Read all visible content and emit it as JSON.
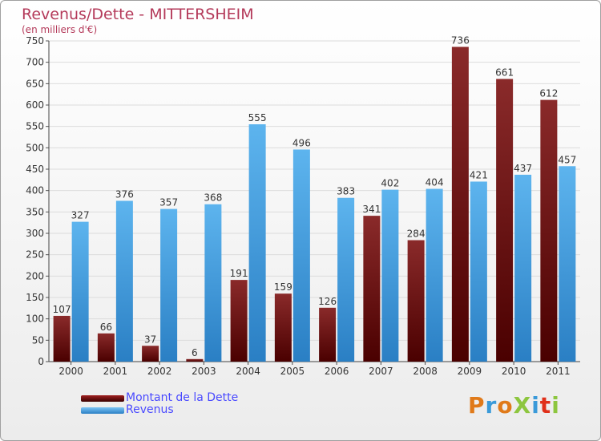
{
  "title": "Revenus/Dette - MITTERSHEIM",
  "subtitle": "(en milliers d'€)",
  "legend": [
    {
      "label": "Montant de la Dette",
      "color": "#7a1010"
    },
    {
      "label": "Revenus",
      "color": "#3d9be0"
    }
  ],
  "logo": {
    "text": "ProXiti",
    "colors": [
      "#e07a1a",
      "#3a9ad9",
      "#e07a1a",
      "#8dc63f",
      "#3a9ad9",
      "#e0301a",
      "#8dc63f"
    ]
  },
  "chart_data": {
    "type": "bar",
    "categories": [
      "2000",
      "2001",
      "2002",
      "2003",
      "2004",
      "2005",
      "2006",
      "2007",
      "2008",
      "2009",
      "2010",
      "2011"
    ],
    "series": [
      {
        "name": "Montant de la Dette",
        "color": "#7a1010",
        "values": [
          107,
          66,
          37,
          6,
          191,
          159,
          126,
          341,
          284,
          736,
          661,
          612
        ]
      },
      {
        "name": "Revenus",
        "color": "#3d9be0",
        "values": [
          327,
          376,
          357,
          368,
          555,
          496,
          383,
          402,
          404,
          421,
          437,
          457
        ]
      }
    ],
    "ylim": [
      0,
      750
    ],
    "yticks": [
      0,
      50,
      100,
      150,
      200,
      250,
      300,
      350,
      400,
      450,
      500,
      550,
      600,
      650,
      700,
      750
    ],
    "grid": true,
    "legend_position": "bottom-left"
  }
}
